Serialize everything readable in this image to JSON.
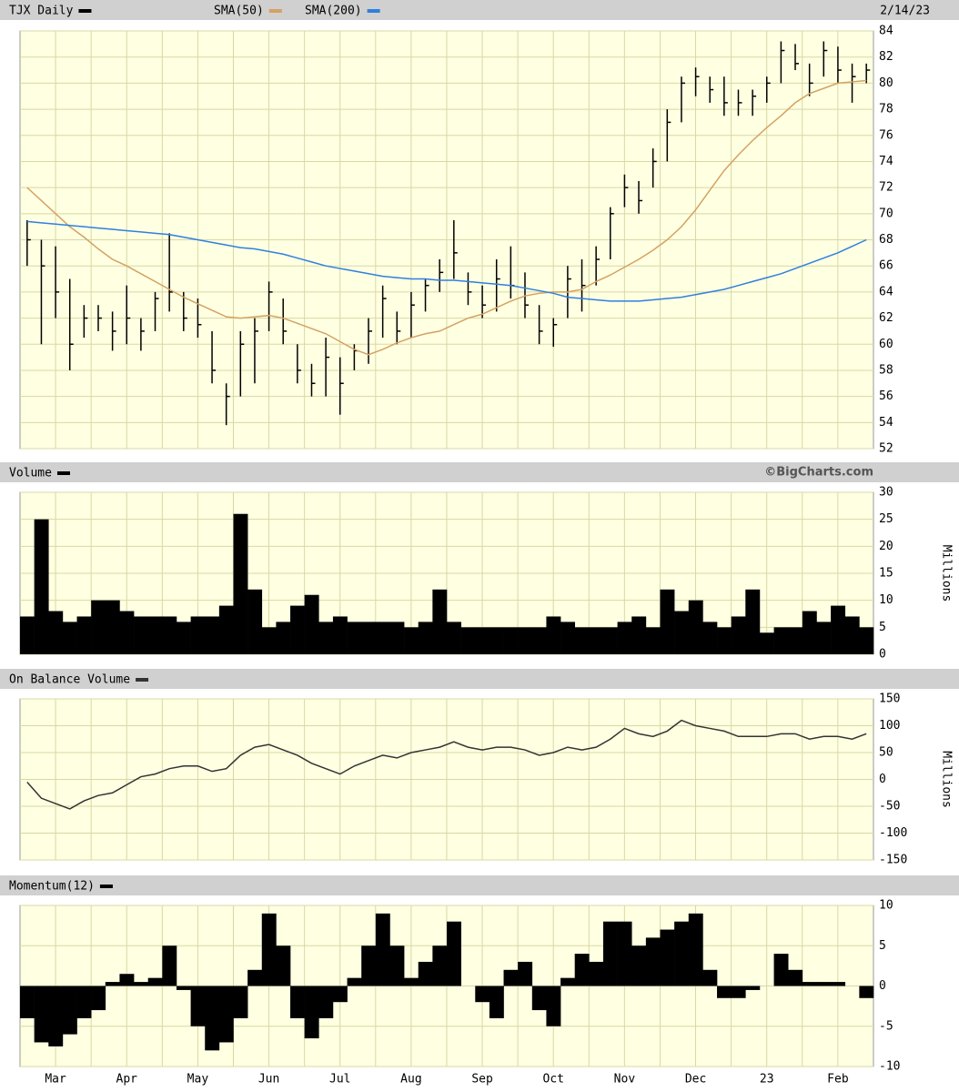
{
  "chart_data": [
    {
      "type": "ohlc",
      "date": "2/14/23",
      "ylim": [
        52,
        84
      ],
      "yticks": [
        52,
        54,
        56,
        58,
        60,
        62,
        64,
        66,
        68,
        70,
        72,
        74,
        76,
        78,
        80,
        82,
        84
      ],
      "grid": true,
      "series": [
        {
          "name": "TJX Daily",
          "color": "#000000",
          "high": [
            69.5,
            68,
            67.5,
            65,
            63,
            63,
            62.5,
            64.5,
            62,
            64,
            68.5,
            64,
            63.5,
            61,
            57,
            61,
            62,
            64.8,
            63.5,
            60,
            58.5,
            60.5,
            59,
            60,
            62,
            64.5,
            62.5,
            64,
            65,
            66.5,
            69.5,
            65.5,
            64.5,
            66.5,
            67.5,
            65.5,
            63,
            62,
            66,
            66.5,
            67.5,
            70.5,
            73,
            72.5,
            75,
            78,
            80.5,
            81.2,
            80.5,
            80.5,
            79.5,
            79.5,
            80.5,
            83.2,
            83,
            81.5,
            83.2,
            82.8,
            81.5,
            81.5
          ],
          "low": [
            66,
            60,
            62,
            58,
            60.5,
            61,
            59.5,
            60,
            59.5,
            61,
            62.5,
            61,
            60.5,
            57,
            53.8,
            56,
            57,
            61,
            60,
            57,
            56,
            56,
            54.6,
            58,
            58.5,
            60.5,
            60,
            60.5,
            62.5,
            64,
            65,
            63,
            62,
            62.5,
            63.5,
            62,
            60,
            59.8,
            62,
            62.5,
            64.5,
            66.5,
            70.5,
            70,
            72,
            74,
            77,
            79,
            78.5,
            77.5,
            77.5,
            77.5,
            78.5,
            80,
            81,
            79,
            80.5,
            80,
            78.5,
            80
          ],
          "close": [
            68,
            66,
            64,
            60,
            62,
            62,
            61,
            62,
            61,
            63.5,
            64,
            62,
            61.5,
            58,
            56,
            60,
            61,
            64,
            61,
            58,
            57,
            59,
            57,
            59.5,
            61,
            63.5,
            61,
            63,
            64.5,
            65.5,
            67,
            64,
            63,
            65,
            64.5,
            63,
            61,
            61.5,
            65,
            64.5,
            66.5,
            70,
            72,
            71,
            74,
            77,
            80,
            80.5,
            79.5,
            78.5,
            78.5,
            79,
            80,
            82.5,
            81.5,
            80,
            82.5,
            81,
            80.5,
            81
          ]
        },
        {
          "name": "SMA(50)",
          "color": "#d4a262",
          "values": [
            72,
            71,
            70,
            69,
            68.2,
            67.3,
            66.5,
            66,
            65.4,
            64.8,
            64.2,
            63.6,
            63.1,
            62.6,
            62.1,
            62,
            62.1,
            62.2,
            62,
            61.6,
            61.2,
            60.8,
            60.2,
            59.6,
            59.2,
            59.6,
            60.1,
            60.5,
            60.8,
            61,
            61.5,
            62,
            62.3,
            62.8,
            63.3,
            63.7,
            63.9,
            64,
            64,
            64.2,
            64.8,
            65.3,
            65.9,
            66.5,
            67.2,
            68,
            69,
            70.3,
            71.8,
            73.3,
            74.5,
            75.6,
            76.6,
            77.5,
            78.5,
            79.2,
            79.6,
            80,
            80.1,
            80.2
          ]
        },
        {
          "name": "SMA(200)",
          "color": "#2f7fe0",
          "values": [
            69.4,
            69.3,
            69.2,
            69.1,
            69,
            68.9,
            68.8,
            68.7,
            68.6,
            68.5,
            68.4,
            68.2,
            68,
            67.8,
            67.6,
            67.4,
            67.3,
            67.1,
            66.9,
            66.6,
            66.3,
            66,
            65.8,
            65.6,
            65.4,
            65.2,
            65.1,
            65,
            65,
            64.9,
            64.9,
            64.8,
            64.7,
            64.6,
            64.5,
            64.3,
            64.1,
            63.9,
            63.6,
            63.5,
            63.4,
            63.3,
            63.3,
            63.3,
            63.4,
            63.5,
            63.6,
            63.8,
            64,
            64.2,
            64.5,
            64.8,
            65.1,
            65.4,
            65.8,
            66.2,
            66.6,
            67,
            67.5,
            68
          ]
        }
      ]
    },
    {
      "type": "bar",
      "source": "©BigCharts.com",
      "ylabel": "Millions",
      "ylim": [
        0,
        30
      ],
      "yticks": [
        0,
        5,
        10,
        15,
        20,
        25,
        30
      ],
      "grid": true,
      "series": [
        {
          "name": "Volume",
          "color": "#000000",
          "values": [
            7,
            25,
            8,
            6,
            7,
            10,
            10,
            8,
            7,
            7,
            7,
            6,
            7,
            7,
            9,
            26,
            12,
            5,
            6,
            9,
            11,
            6,
            7,
            6,
            6,
            6,
            6,
            5,
            6,
            12,
            6,
            5,
            5,
            5,
            5,
            5,
            5,
            7,
            6,
            5,
            5,
            5,
            6,
            7,
            5,
            12,
            8,
            10,
            6,
            5,
            7,
            12,
            4,
            5,
            5,
            8,
            6,
            9,
            7,
            5
          ]
        }
      ]
    },
    {
      "type": "line",
      "ylabel": "Millions",
      "ylim": [
        -150,
        150
      ],
      "yticks": [
        -150,
        -100,
        -50,
        0,
        50,
        100,
        150
      ],
      "grid": true,
      "series": [
        {
          "name": "On Balance Volume",
          "color": "#333333",
          "values": [
            -5,
            -35,
            -45,
            -55,
            -40,
            -30,
            -25,
            -10,
            5,
            10,
            20,
            25,
            25,
            15,
            20,
            45,
            60,
            65,
            55,
            45,
            30,
            20,
            10,
            25,
            35,
            45,
            40,
            50,
            55,
            60,
            70,
            60,
            55,
            60,
            60,
            55,
            45,
            50,
            60,
            55,
            60,
            75,
            95,
            85,
            80,
            90,
            110,
            100,
            95,
            90,
            80,
            80,
            80,
            85,
            85,
            75,
            80,
            80,
            75,
            85
          ]
        }
      ]
    },
    {
      "type": "bar",
      "ylim": [
        -10,
        10
      ],
      "yticks": [
        -10,
        -5,
        0,
        5,
        10
      ],
      "grid": true,
      "categories": [
        null,
        null,
        "Mar",
        null,
        null,
        null,
        null,
        "Apr",
        null,
        null,
        null,
        null,
        "May",
        null,
        null,
        null,
        null,
        "Jun",
        null,
        null,
        null,
        null,
        "Jul",
        null,
        null,
        null,
        null,
        "Aug",
        null,
        null,
        null,
        null,
        "Sep",
        null,
        null,
        null,
        null,
        "Oct",
        null,
        null,
        null,
        null,
        "Nov",
        null,
        null,
        null,
        null,
        "Dec",
        null,
        null,
        null,
        null,
        "23",
        null,
        null,
        null,
        null,
        "Feb",
        null,
        null
      ],
      "series": [
        {
          "name": "Momentum(12)",
          "color": "#000000",
          "values": [
            -4,
            -7,
            -7.5,
            -6,
            -4,
            -3,
            0.5,
            1.5,
            0.5,
            1,
            5,
            -0.5,
            -5,
            -8,
            -7,
            -4,
            2,
            9,
            5,
            -4,
            -6.5,
            -4,
            -2,
            1,
            5,
            9,
            5,
            1,
            3,
            5,
            8,
            0,
            -2,
            -4,
            2,
            3,
            -3,
            -5,
            1,
            4,
            3,
            8,
            8,
            5,
            6,
            7,
            8,
            9,
            2,
            -1.5,
            -1.5,
            -0.5,
            0,
            4,
            2,
            0.5,
            0.5,
            0.5,
            0,
            -1.5
          ]
        }
      ]
    }
  ]
}
